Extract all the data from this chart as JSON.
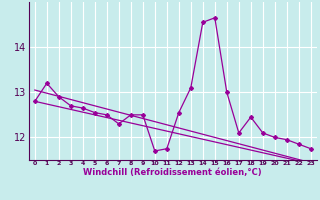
{
  "xlabel": "Windchill (Refroidissement éolien,°C)",
  "bg_color": "#c8ecec",
  "line_color": "#990099",
  "grid_color": "#aadddd",
  "x_data": [
    0,
    1,
    2,
    3,
    4,
    5,
    6,
    7,
    8,
    9,
    10,
    11,
    12,
    13,
    14,
    15,
    16,
    17,
    18,
    19,
    20,
    21,
    22,
    23
  ],
  "y_main": [
    12.8,
    13.2,
    12.9,
    12.7,
    12.65,
    12.55,
    12.5,
    12.3,
    12.5,
    12.5,
    11.7,
    11.75,
    12.55,
    13.1,
    14.55,
    14.65,
    13.0,
    12.1,
    12.45,
    12.1,
    12.0,
    11.95,
    11.85,
    11.75
  ],
  "y_trend1": [
    12.8,
    12.74,
    12.68,
    12.62,
    12.56,
    12.5,
    12.44,
    12.38,
    12.32,
    12.26,
    12.2,
    12.14,
    12.08,
    12.02,
    11.96,
    11.9,
    11.84,
    11.78,
    11.72,
    11.66,
    11.6,
    11.54,
    11.48,
    11.42
  ],
  "y_trend2": [
    13.05,
    12.98,
    12.91,
    12.84,
    12.77,
    12.7,
    12.63,
    12.56,
    12.49,
    12.42,
    12.35,
    12.28,
    12.21,
    12.14,
    12.07,
    12.0,
    11.93,
    11.86,
    11.79,
    11.72,
    11.65,
    11.58,
    11.51,
    11.44
  ],
  "ylim": [
    11.5,
    15.0
  ],
  "yticks": [
    12,
    13,
    14
  ],
  "xlim": [
    -0.5,
    23.5
  ]
}
